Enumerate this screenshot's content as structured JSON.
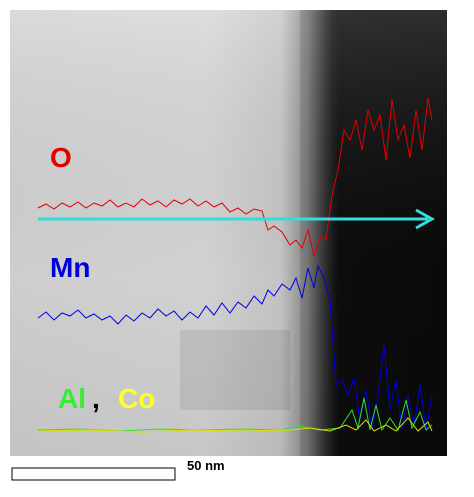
{
  "labels": {
    "oxygen": "O",
    "manganese": "Mn",
    "aluminum": "Al",
    "separator": ",",
    "cobalt": "Co"
  },
  "scale_bar": {
    "label": "50 nm"
  }
}
